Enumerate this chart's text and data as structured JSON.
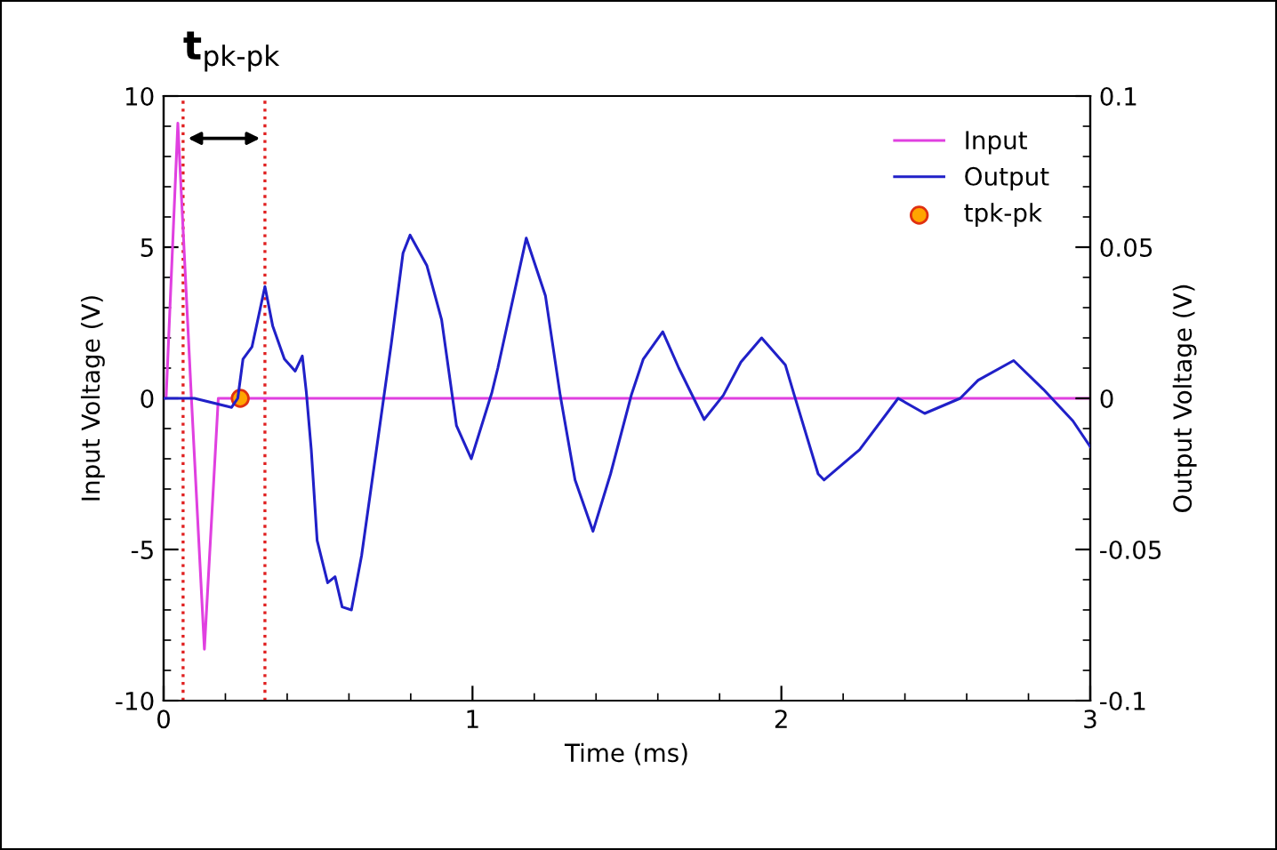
{
  "chart_data": {
    "type": "line",
    "xlabel": "Time (ms)",
    "ylabel": "Input Voltage (V)",
    "y2label": "Output Voltage (V)",
    "annotations": [
      "t$_{pk-pk}$"
    ],
    "xlim": [
      0,
      3
    ],
    "ylim": [
      -10,
      10
    ],
    "y2lim": [
      -0.1,
      0.1
    ],
    "xticks": [
      0,
      {
        "value": 0.2,
        "label": null
      },
      {
        "value": 0.4,
        "label": null
      },
      {
        "value": 0.6,
        "label": null
      },
      {
        "value": 0.8,
        "label": null
      },
      1,
      {
        "value": 1.2,
        "label": null
      },
      {
        "value": 1.4,
        "label": null
      },
      {
        "value": 1.6,
        "label": null
      },
      {
        "value": 1.8,
        "label": null
      },
      2,
      {
        "value": 2.2,
        "label": null
      },
      {
        "value": 2.4,
        "label": null
      },
      {
        "value": 2.6,
        "label": null
      },
      {
        "value": 2.8,
        "label": null
      },
      3
    ],
    "yticks": [
      -10,
      {
        "value": -9,
        "label": null
      },
      {
        "value": -8,
        "label": null
      },
      {
        "value": -7,
        "label": null
      },
      {
        "value": -6,
        "label": null
      },
      -5,
      {
        "value": -4,
        "label": null
      },
      {
        "value": -3,
        "label": null
      },
      {
        "value": -2,
        "label": null
      },
      {
        "value": -1,
        "label": null
      },
      0,
      {
        "value": 1,
        "label": null
      },
      {
        "value": 2,
        "label": null
      },
      {
        "value": 3,
        "label": null
      },
      {
        "value": 4,
        "label": null
      },
      5,
      {
        "value": 6,
        "label": null
      },
      {
        "value": 7,
        "label": null
      },
      {
        "value": 8,
        "label": null
      },
      {
        "value": 9,
        "label": null
      },
      10
    ],
    "y2ticks": [
      -0.1,
      {
        "value": -0.09,
        "label": null
      },
      {
        "value": -0.08,
        "label": null
      },
      {
        "value": -0.07,
        "label": null
      },
      {
        "value": -0.06,
        "label": null
      },
      -0.05,
      {
        "value": -0.04,
        "label": null
      },
      {
        "value": -0.03,
        "label": null
      },
      {
        "value": -0.02,
        "label": null
      },
      {
        "value": -0.01,
        "label": null
      },
      0,
      {
        "value": 0.01,
        "label": null
      },
      {
        "value": 0.02,
        "label": null
      },
      {
        "value": 0.03,
        "label": null
      },
      {
        "value": 0.04,
        "label": null
      },
      0.05,
      {
        "value": 0.06,
        "label": null
      },
      {
        "value": 0.07,
        "label": null
      },
      {
        "value": 0.08,
        "label": null
      },
      {
        "value": 0.09,
        "label": null
      },
      0.1
    ],
    "grid": false,
    "legend": "top right",
    "marker": "none",
    "line_style": "solid",
    "ref_lines": [
      {
        "axis": "x",
        "value": 0.063,
        "color": "#e02020",
        "line_style": "dotted"
      },
      {
        "axis": "x",
        "value": 0.328,
        "color": "#e02020",
        "line_style": "dotted"
      }
    ],
    "series": [
      {
        "name": "Input",
        "color": "#e040e0",
        "x": [
          0,
          0.008,
          0.046,
          0.09,
          0.132,
          0.177,
          0.5,
          1.0,
          1.5,
          2.0,
          2.5,
          3.0
        ],
        "values": [
          0,
          0,
          9.1,
          0,
          -8.3,
          0,
          0,
          0,
          0,
          0,
          0,
          0
        ]
      },
      {
        "name": "Output",
        "color": "#2020c8",
        "axis": "y2",
        "x": [
          0,
          0.1,
          0.22,
          0.24,
          0.257,
          0.286,
          0.328,
          0.353,
          0.391,
          0.426,
          0.449,
          0.462,
          0.478,
          0.497,
          0.531,
          0.555,
          0.578,
          0.608,
          0.641,
          0.689,
          0.737,
          0.775,
          0.798,
          0.852,
          0.9,
          0.948,
          0.996,
          1.063,
          1.082,
          1.174,
          1.236,
          1.284,
          1.332,
          1.39,
          1.447,
          1.514,
          1.553,
          1.616,
          1.668,
          1.75,
          1.812,
          1.869,
          1.936,
          2.013,
          2.042,
          2.119,
          2.138,
          2.253,
          2.378,
          2.464,
          2.579,
          2.637,
          2.752,
          2.848,
          2.944,
          3.0
        ],
        "values": [
          0,
          0,
          -0.003,
          0,
          0.013,
          0.017,
          0.037,
          0.024,
          0.013,
          0.009,
          0.014,
          0.002,
          -0.017,
          -0.047,
          -0.061,
          -0.059,
          -0.069,
          -0.07,
          -0.052,
          -0.017,
          0.018,
          0.048,
          0.054,
          0.044,
          0.026,
          -0.009,
          -0.02,
          0.002,
          0.01,
          0.053,
          0.034,
          0.001,
          -0.027,
          -0.044,
          -0.025,
          0.001,
          0.013,
          0.022,
          0.01,
          -0.007,
          0.001,
          0.012,
          0.02,
          0.011,
          0.001,
          -0.025,
          -0.027,
          -0.017,
          0,
          -0.005,
          0,
          0.006,
          0.0125,
          0.003,
          -0.0075,
          -0.016
        ]
      },
      {
        "name": "tpk-pk",
        "type": "scatter",
        "marker": "circle",
        "color": "#ffa500",
        "x": [
          0.248
        ],
        "values": [
          0
        ]
      }
    ]
  }
}
